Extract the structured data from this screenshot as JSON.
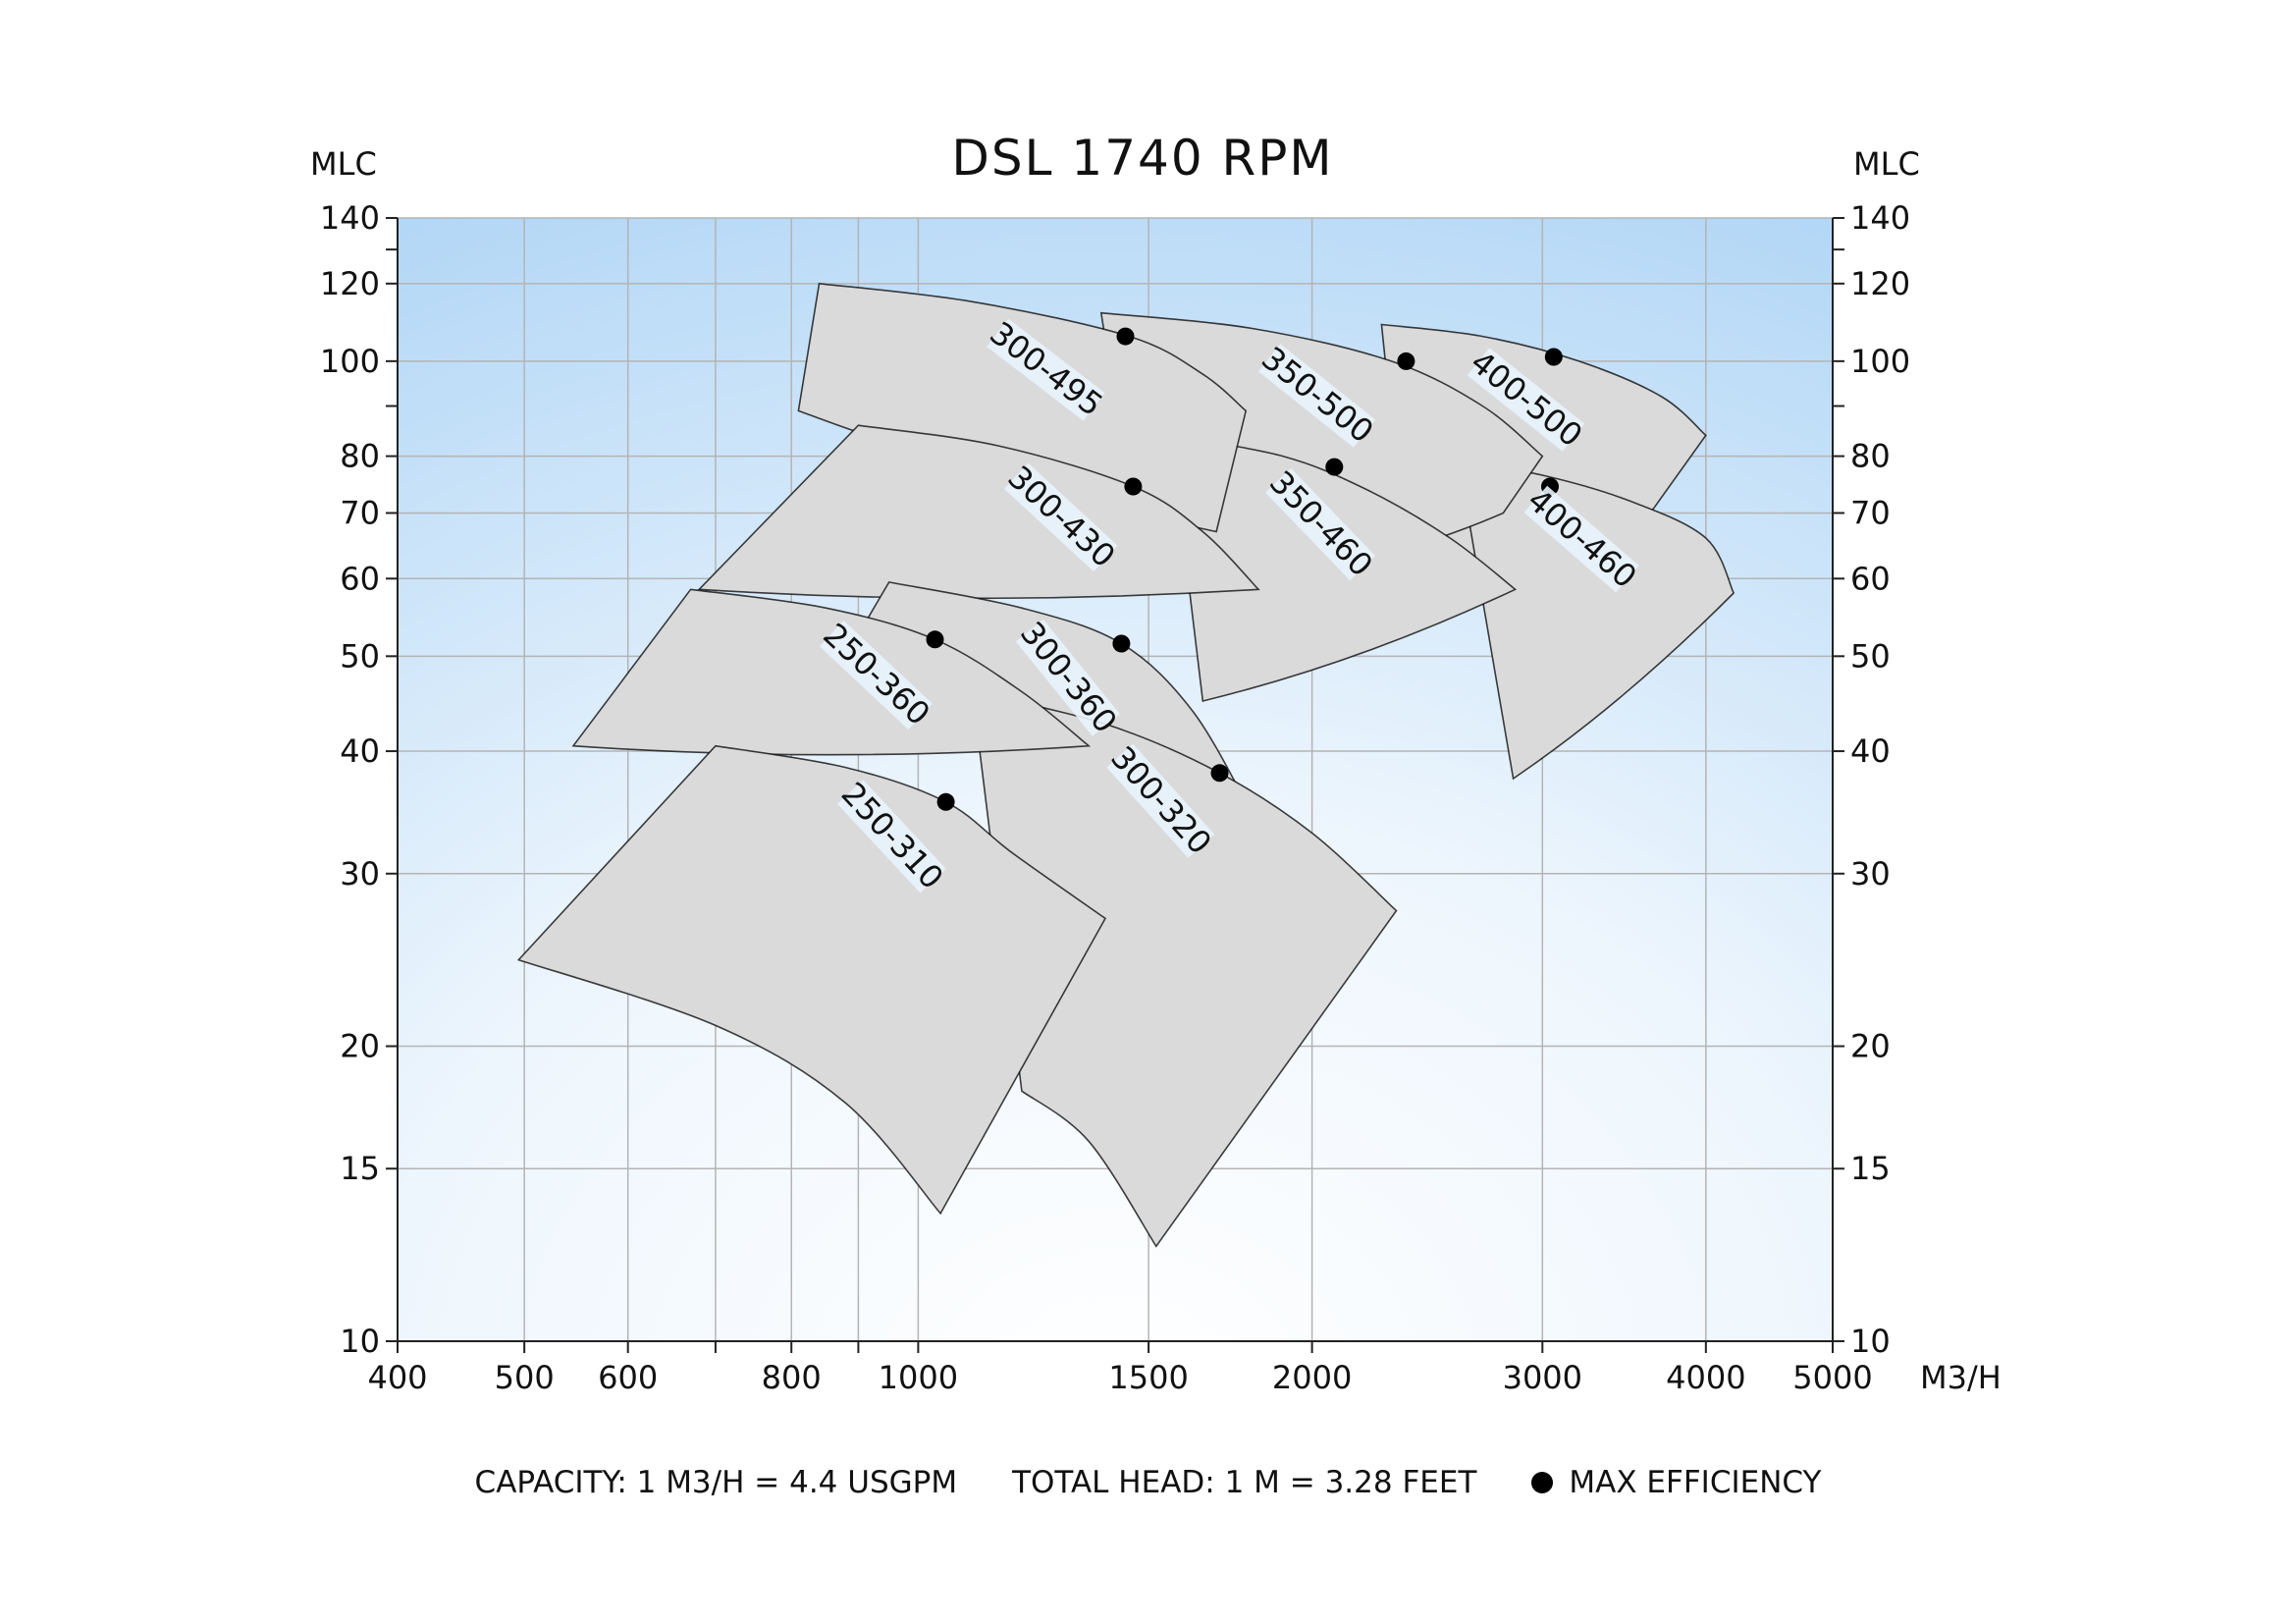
{
  "chart_data": {
    "type": "area",
    "title": "DSL 1740 RPM",
    "xlabel": "M3/H",
    "ylabel_left": "MLC",
    "ylabel_right": "MLC",
    "x_scale": "log",
    "y_scale": "log",
    "xlim": [
      400,
      5000
    ],
    "ylim": [
      10,
      140
    ],
    "x_ticks": [
      400,
      500,
      600,
      800,
      1000,
      1500,
      2000,
      3000,
      4000,
      5000
    ],
    "x_tick_labels": [
      "400",
      "500",
      "600",
      "800",
      "1000",
      "1500",
      "2000",
      "3000",
      "4000",
      "5000"
    ],
    "x_gridlines": [
      400,
      500,
      600,
      700,
      800,
      900,
      1000,
      1500,
      2000,
      3000,
      4000,
      5000
    ],
    "y_ticks": [
      10,
      15,
      20,
      30,
      40,
      50,
      60,
      70,
      80,
      100,
      120,
      140
    ],
    "y_tick_labels": [
      "10",
      "15",
      "20",
      "30",
      "40",
      "50",
      "60",
      "70",
      "80",
      "100",
      "120",
      "140"
    ],
    "y_gridlines": [
      10,
      15,
      20,
      30,
      40,
      50,
      60,
      70,
      80,
      100,
      120,
      140
    ],
    "y_minor_ticks": [
      90,
      130
    ],
    "grid": true,
    "background": "light-blue gradient",
    "colors": {
      "region_fill": "#dadada",
      "region_stroke": "#000000",
      "grid": "#b4b4b4",
      "bg_top": "#bcdcf8",
      "bg_bottom": "#ffffff",
      "marker": "#000000"
    },
    "series": [
      {
        "name": "400-500",
        "top": [
          [
            2260,
            109
          ],
          [
            2700,
            106
          ],
          [
            3200,
            100
          ],
          [
            3700,
            92
          ],
          [
            4000,
            84
          ]
        ],
        "bottom_right": [
          3600,
          69
        ],
        "bottom_left": null,
        "top_left": [
          2260,
          109
        ],
        "max_efficiency": [
          3060,
          101
        ]
      },
      {
        "name": "400-460",
        "top": [
          [
            2590,
            79
          ],
          [
            3000,
            76.5
          ],
          [
            3500,
            72
          ],
          [
            4000,
            66
          ],
          [
            4200,
            58
          ]
        ],
        "bottom_right": [
          4200,
          58
        ],
        "bottom_left": [
          2850,
          37.5
        ],
        "top_left": [
          2590,
          79
        ],
        "max_efficiency": [
          3040,
          74.5
        ]
      },
      {
        "name": "350-500",
        "top": [
          [
            1380,
            112
          ],
          [
            1800,
            108
          ],
          [
            2300,
            100
          ],
          [
            2700,
            90
          ],
          [
            3000,
            80
          ]
        ],
        "bottom_right": [
          2800,
          70
        ],
        "bottom_left": null,
        "top_left": [
          1380,
          112
        ],
        "max_efficiency": [
          2360,
          100
        ]
      },
      {
        "name": "350-460",
        "top": [
          [
            1560,
            84
          ],
          [
            1900,
            80
          ],
          [
            2200,
            74
          ],
          [
            2550,
            66
          ],
          [
            2860,
            58.5
          ]
        ],
        "bottom_right": [
          2860,
          58.5
        ],
        "bottom_left": [
          1650,
          45
        ],
        "top_left": [
          1560,
          84
        ],
        "max_efficiency": [
          2080,
          78
        ]
      },
      {
        "name": "300-495",
        "top": [
          [
            840,
            120
          ],
          [
            1100,
            115
          ],
          [
            1450,
            106
          ],
          [
            1650,
            97
          ],
          [
            1780,
            89
          ]
        ],
        "bottom_right": [
          1690,
          67
        ],
        "bottom_left": [
          810,
          89
        ],
        "top_left": [
          840,
          120
        ],
        "max_efficiency": [
          1440,
          106
        ]
      },
      {
        "name": "300-430",
        "top": [
          [
            900,
            86
          ],
          [
            1150,
            82
          ],
          [
            1460,
            74.5
          ],
          [
            1650,
            67
          ],
          [
            1820,
            58.5
          ]
        ],
        "bottom_right": [
          1820,
          58.5
        ],
        "bottom_left": [
          680,
          58.5
        ],
        "top_left": [
          900,
          86
        ],
        "max_efficiency": [
          1460,
          74.5
        ]
      },
      {
        "name": "300-360",
        "top": [
          [
            950,
            59.5
          ],
          [
            1200,
            56
          ],
          [
            1430,
            51.5
          ],
          [
            1620,
            44
          ],
          [
            1790,
            35
          ]
        ],
        "bottom_right": [
          1790,
          35
        ],
        "bottom_left": [
          880,
          50
        ],
        "top_left": [
          950,
          59.5
        ],
        "max_efficiency": [
          1430,
          51.5
        ]
      },
      {
        "name": "300-320",
        "top": [
          [
            1100,
            46
          ],
          [
            1400,
            42.5
          ],
          [
            1700,
            38
          ],
          [
            2000,
            33
          ],
          [
            2320,
            27.5
          ]
        ],
        "bottom_right": [
          2320,
          27.5
        ],
        "bottom_left": [
          1200,
          18
        ],
        "bottom": [
          [
            1200,
            18
          ],
          [
            1350,
            16
          ],
          [
            1520,
            12.5
          ]
        ],
        "top_left": [
          1100,
          46
        ],
        "max_efficiency": [
          1700,
          38
        ]
      },
      {
        "name": "250-360",
        "top": [
          [
            670,
            58.5
          ],
          [
            850,
            56
          ],
          [
            1030,
            52
          ],
          [
            1200,
            46
          ],
          [
            1350,
            40.5
          ]
        ],
        "bottom_right": [
          1350,
          40.5
        ],
        "bottom_left": [
          545,
          40.5
        ],
        "top_left": [
          670,
          58.5
        ],
        "max_efficiency": [
          1030,
          52
        ]
      },
      {
        "name": "250-310",
        "top": [
          [
            700,
            40.5
          ],
          [
            880,
            38.5
          ],
          [
            1050,
            35.5
          ],
          [
            1180,
            31.5
          ],
          [
            1390,
            27
          ]
        ],
        "bottom_right": [
          1390,
          27
        ],
        "bottom_left": [
          495,
          24.5
        ],
        "bottom": [
          [
            495,
            24.5
          ],
          [
            700,
            21
          ],
          [
            880,
            17.5
          ],
          [
            1040,
            13.5
          ]
        ],
        "top_left": [
          700,
          40.5
        ],
        "max_efficiency": [
          1050,
          35.5
        ]
      }
    ]
  },
  "footer": {
    "capacity": "CAPACITY: 1 M3/H = 4.4 USGPM",
    "total_head": "TOTAL HEAD: 1 M = 3.28 FEET",
    "legend_label": "MAX EFFICIENCY"
  }
}
